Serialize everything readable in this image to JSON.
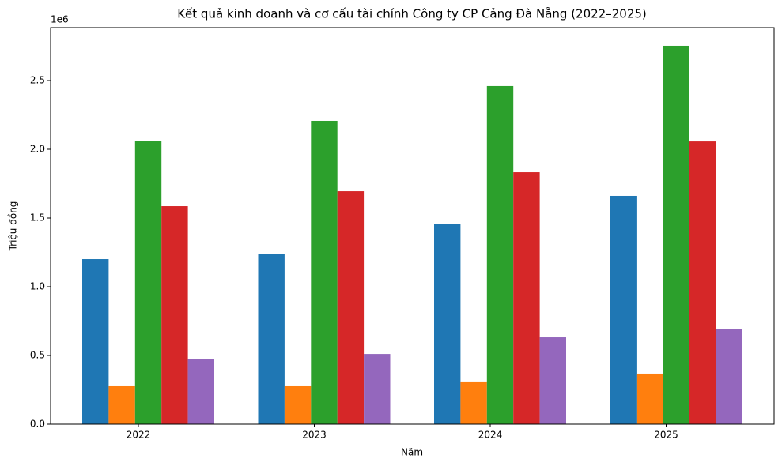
{
  "chart_data": {
    "type": "bar",
    "title": "Kết quả kinh doanh và cơ cấu tài chính Công ty CP Cảng Đà Nẵng (2022–2025)",
    "x_label": "Năm",
    "y_label": "Triệu đồng",
    "y_offset_text": "1e6",
    "categories": [
      "2022",
      "2023",
      "2024",
      "2025"
    ],
    "series": [
      {
        "color": "#1f77b4",
        "values": [
          1201000,
          1236000,
          1454000,
          1661000
        ]
      },
      {
        "color": "#ff7f0e",
        "values": [
          276000,
          276000,
          305000,
          368000
        ]
      },
      {
        "color": "#2ca02c",
        "values": [
          2063000,
          2207000,
          2460000,
          2753000
        ]
      },
      {
        "color": "#d62728",
        "values": [
          1586000,
          1695000,
          1833000,
          2057000
        ]
      },
      {
        "color": "#9467bd",
        "values": [
          477000,
          511000,
          632000,
          695000
        ]
      }
    ],
    "ylim": [
      0,
      2885000
    ],
    "yticks": [
      {
        "value": 0,
        "label": "0.0"
      },
      {
        "value": 500000,
        "label": "0.5"
      },
      {
        "value": 1000000,
        "label": "1.0"
      },
      {
        "value": 1500000,
        "label": "1.5"
      },
      {
        "value": 2000000,
        "label": "2.0"
      },
      {
        "value": 2500000,
        "label": "2.5"
      }
    ],
    "grid": false
  }
}
